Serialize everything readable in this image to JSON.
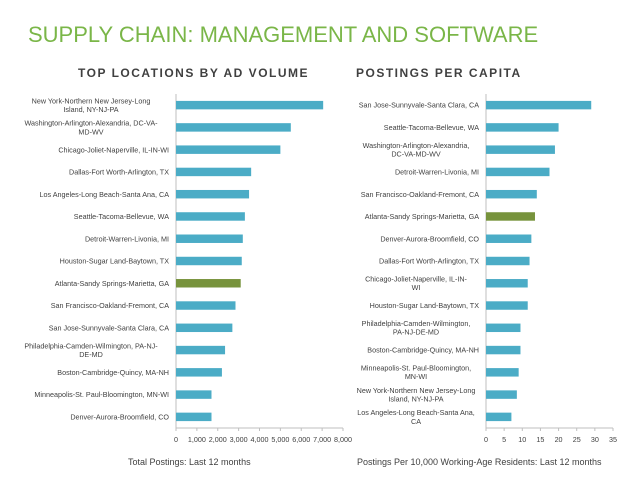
{
  "page": {
    "title": "SUPPLY CHAIN: MANAGEMENT AND SOFTWARE"
  },
  "colors": {
    "bar": "#4bacc6",
    "highlight": "#77933c",
    "title": "#7ab648",
    "text": "#404040",
    "axis": "#bfbfbf"
  },
  "chart_data": [
    {
      "type": "bar",
      "orientation": "horizontal",
      "title": "TOP LOCATIONS BY AD VOLUME",
      "xlabel": "Total Postings: Last 12 months",
      "ylabel": "",
      "xlim": [
        0,
        8000
      ],
      "xticks": [
        "0",
        "1,000",
        "2,000",
        "3,000",
        "4,000",
        "5,000",
        "6,000",
        "7,000",
        "8,000"
      ],
      "highlight": "Atlanta-Sandy Springs-Marietta, GA",
      "categories": [
        "New York-Northern New Jersey-Long Island, NY-NJ-PA",
        "Washington-Arlington-Alexandria, DC-VA-MD-WV",
        "Chicago-Joliet-Naperville, IL-IN-WI",
        "Dallas-Fort Worth-Arlington, TX",
        "Los Angeles-Long Beach-Santa Ana, CA",
        "Seattle-Tacoma-Bellevue, WA",
        "Detroit-Warren-Livonia, MI",
        "Houston-Sugar Land-Baytown, TX",
        "Atlanta-Sandy Springs-Marietta, GA",
        "San Francisco-Oakland-Fremont, CA",
        "San Jose-Sunnyvale-Santa Clara, CA",
        "Philadelphia-Camden-Wilmington, PA-NJ-DE-MD",
        "Boston-Cambridge-Quincy, MA-NH",
        "Minneapolis-St. Paul-Bloomington, MN-WI",
        "Denver-Aurora-Broomfield, CO"
      ],
      "values": [
        7050,
        5500,
        5000,
        3600,
        3500,
        3300,
        3200,
        3150,
        3100,
        2850,
        2700,
        2350,
        2200,
        1700,
        1700
      ]
    },
    {
      "type": "bar",
      "orientation": "horizontal",
      "title": "POSTINGS PER CAPITA",
      "xlabel": "Postings Per 10,000 Working-Age Residents: Last 12 months",
      "ylabel": "",
      "xlim": [
        0,
        35
      ],
      "xticks": [
        "0",
        "5",
        "10",
        "15",
        "20",
        "25",
        "30",
        "35"
      ],
      "highlight": "Atlanta-Sandy Springs-Marietta, GA",
      "categories": [
        "San Jose-Sunnyvale-Santa Clara, CA",
        "Seattle-Tacoma-Bellevue, WA",
        "Washington-Arlington-Alexandria, DC-VA-MD-WV",
        "Detroit-Warren-Livonia, MI",
        "San Francisco-Oakland-Fremont, CA",
        "Atlanta-Sandy Springs-Marietta, GA",
        "Denver-Aurora-Broomfield, CO",
        "Dallas-Fort Worth-Arlington, TX",
        "Chicago-Joliet-Naperville, IL-IN-WI",
        "Houston-Sugar Land-Baytown, TX",
        "Philadelphia-Camden-Wilmington, PA-NJ-DE-MD",
        "Boston-Cambridge-Quincy, MA-NH",
        "Minneapolis-St. Paul-Bloomington, MN-WI",
        "New York-Northern New Jersey-Long Island, NY-NJ-PA",
        "Los Angeles-Long Beach-Santa Ana, CA"
      ],
      "values": [
        29,
        20,
        19,
        17.5,
        14,
        13.5,
        12.5,
        12,
        11.5,
        11.5,
        9.5,
        9.5,
        9,
        8.5,
        7
      ]
    }
  ]
}
